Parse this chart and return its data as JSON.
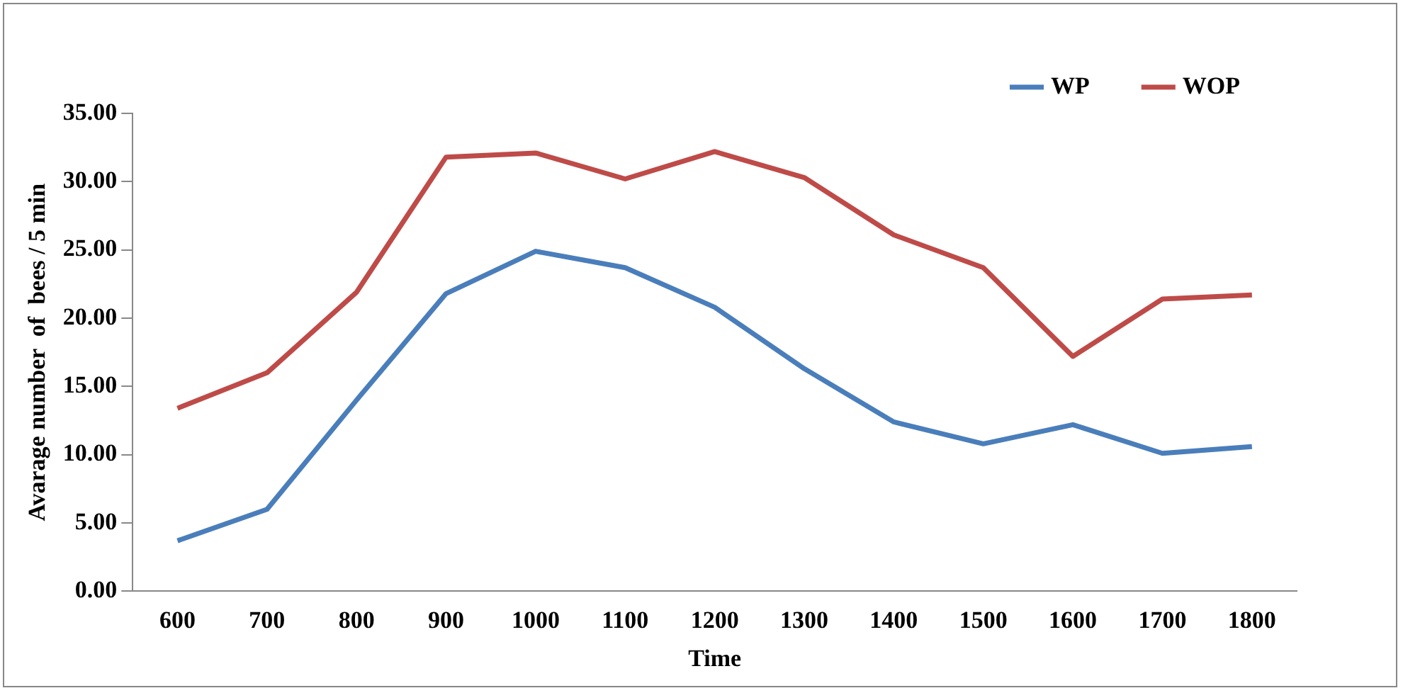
{
  "chart_data": {
    "type": "line",
    "xlabel": "Time",
    "ylabel": "Avarage number  of  bees / 5 min",
    "categories": [
      "600",
      "700",
      "800",
      "900",
      "1000",
      "1100",
      "1200",
      "1300",
      "1400",
      "1500",
      "1600",
      "1700",
      "1800"
    ],
    "series": [
      {
        "name": "WP",
        "color": "#4a7ebb",
        "values": [
          3.7,
          6.0,
          14.0,
          21.8,
          24.9,
          23.7,
          20.8,
          16.3,
          12.4,
          10.8,
          12.2,
          10.1,
          10.6
        ]
      },
      {
        "name": "WOP",
        "color": "#be4b48",
        "values": [
          13.4,
          16.0,
          21.9,
          31.8,
          32.1,
          30.2,
          32.2,
          30.3,
          26.1,
          23.7,
          17.2,
          21.4,
          21.7
        ]
      }
    ],
    "ylim": [
      0,
      35
    ],
    "yticks": [
      {
        "value": 0,
        "label": "0.00"
      },
      {
        "value": 5,
        "label": "5.00"
      },
      {
        "value": 10,
        "label": "10.00"
      },
      {
        "value": 15,
        "label": "15.00"
      },
      {
        "value": 20,
        "label": "20.00"
      },
      {
        "value": 25,
        "label": "25.00"
      },
      {
        "value": 30,
        "label": "30.00"
      },
      {
        "value": 35,
        "label": "35.00"
      }
    ],
    "grid": false,
    "legend": "top right",
    "marker": "none",
    "line_style": "solid"
  }
}
